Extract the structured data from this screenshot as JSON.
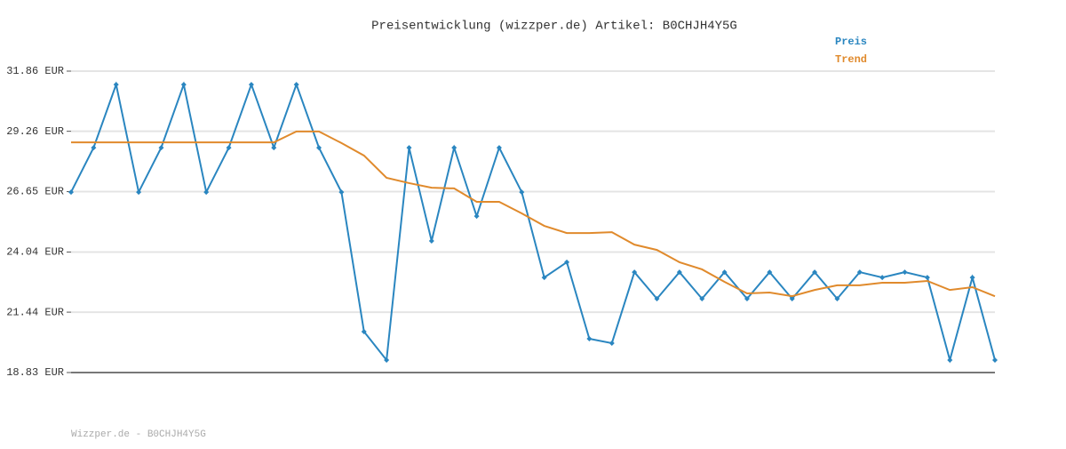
{
  "chart_data": {
    "type": "line",
    "title": "Preisentwicklung (wizzper.de) Artikel: B0CHJH4Y5G",
    "footer": "Wizzper.de - B0CHJH4Y5G",
    "ylim": [
      18.83,
      31.86
    ],
    "yticks": [
      {
        "value": 18.83,
        "label": "18.83 EUR"
      },
      {
        "value": 21.44,
        "label": "21.44 EUR"
      },
      {
        "value": 24.04,
        "label": "24.04 EUR"
      },
      {
        "value": 26.65,
        "label": "26.65 EUR"
      },
      {
        "value": 29.26,
        "label": "29.26 EUR"
      },
      {
        "value": 31.86,
        "label": "31.86 EUR"
      }
    ],
    "grid": true,
    "legend": "top-right",
    "series": [
      {
        "name": "Preis",
        "color": "#2a86c0",
        "markers": true,
        "values": [
          26.63,
          28.55,
          31.28,
          26.63,
          28.55,
          31.28,
          26.63,
          28.55,
          31.28,
          28.55,
          31.28,
          28.55,
          26.63,
          20.6,
          19.37,
          28.55,
          24.52,
          28.55,
          25.59,
          28.55,
          26.63,
          22.94,
          23.6,
          20.29,
          20.1,
          23.17,
          22.02,
          23.17,
          22.02,
          23.17,
          22.02,
          23.17,
          22.02,
          23.17,
          22.02,
          23.17,
          22.94,
          23.17,
          22.94,
          19.37,
          22.94,
          19.37
        ]
      },
      {
        "name": "Trend",
        "color": "#e08a2c",
        "markers": false,
        "values": [
          28.78,
          28.78,
          28.78,
          28.78,
          28.78,
          28.78,
          28.78,
          28.78,
          28.78,
          28.78,
          29.25,
          29.25,
          28.75,
          28.21,
          27.25,
          27.02,
          26.82,
          26.79,
          26.21,
          26.21,
          25.71,
          25.17,
          24.86,
          24.86,
          24.9,
          24.36,
          24.13,
          23.6,
          23.29,
          22.75,
          22.25,
          22.29,
          22.13,
          22.4,
          22.6,
          22.6,
          22.71,
          22.71,
          22.79,
          22.4,
          22.52,
          22.13
        ]
      }
    ]
  }
}
